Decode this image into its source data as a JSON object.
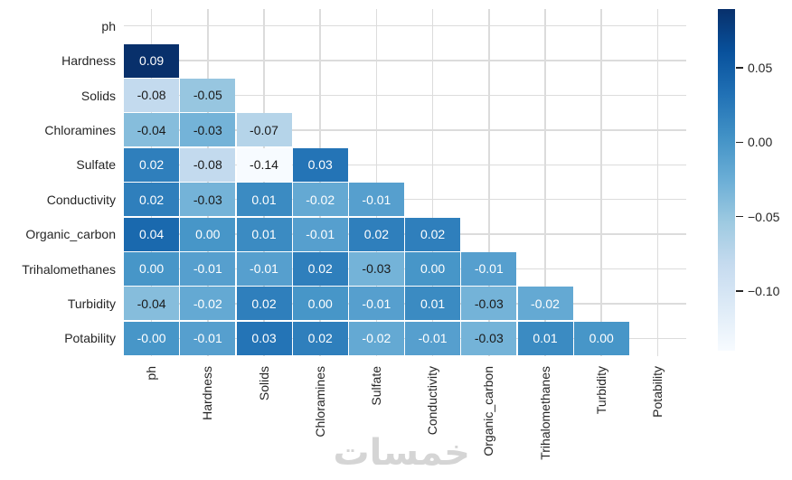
{
  "chart_data": {
    "type": "heatmap",
    "subtype": "lower-triangle-correlation-matrix",
    "title": "",
    "variables": [
      "ph",
      "Hardness",
      "Solids",
      "Chloramines",
      "Sulfate",
      "Conductivity",
      "Organic_carbon",
      "Trihalomethanes",
      "Turbidity",
      "Potability"
    ],
    "rows": [
      {
        "label": "ph",
        "values": []
      },
      {
        "label": "Hardness",
        "values": [
          "0.09"
        ]
      },
      {
        "label": "Solids",
        "values": [
          "-0.08",
          "-0.05"
        ]
      },
      {
        "label": "Chloramines",
        "values": [
          "-0.04",
          "-0.03",
          "-0.07"
        ]
      },
      {
        "label": "Sulfate",
        "values": [
          "0.02",
          "-0.08",
          "-0.14",
          "0.03"
        ]
      },
      {
        "label": "Conductivity",
        "values": [
          "0.02",
          "-0.03",
          "0.01",
          "-0.02",
          "-0.01"
        ]
      },
      {
        "label": "Organic_carbon",
        "values": [
          "0.04",
          "0.00",
          "0.01",
          "-0.01",
          "0.02",
          "0.02"
        ]
      },
      {
        "label": "Trihalomethanes",
        "values": [
          "0.00",
          "-0.01",
          "-0.01",
          "0.02",
          "-0.03",
          "0.00",
          "-0.01"
        ]
      },
      {
        "label": "Turbidity",
        "values": [
          "-0.04",
          "-0.02",
          "0.02",
          "0.00",
          "-0.01",
          "0.01",
          "-0.03",
          "-0.02"
        ]
      },
      {
        "label": "Potability",
        "values": [
          "-0.00",
          "-0.01",
          "0.03",
          "0.02",
          "-0.02",
          "-0.01",
          "-0.03",
          "0.01",
          "0.00"
        ]
      }
    ],
    "vmin": -0.14,
    "vmax": 0.09,
    "colormap": "Blues",
    "colormap_stops": [
      "#f7fbff",
      "#deebf7",
      "#c6dbef",
      "#9ecae1",
      "#6baed6",
      "#4292c6",
      "#2171b5",
      "#08519c",
      "#08306b"
    ],
    "grid": "on",
    "grid_color": "#dcdcdc",
    "annotation_color_dark": "#1a1a1a",
    "annotation_color_light": "#ffffff",
    "colorbar": {
      "position": "right",
      "tick_labels": [
        "0.05",
        "0.00",
        "−0.05",
        "−0.10"
      ],
      "tick_values": [
        0.05,
        0.0,
        -0.05,
        -0.1
      ]
    }
  },
  "watermark": {
    "text": "خمسات"
  }
}
